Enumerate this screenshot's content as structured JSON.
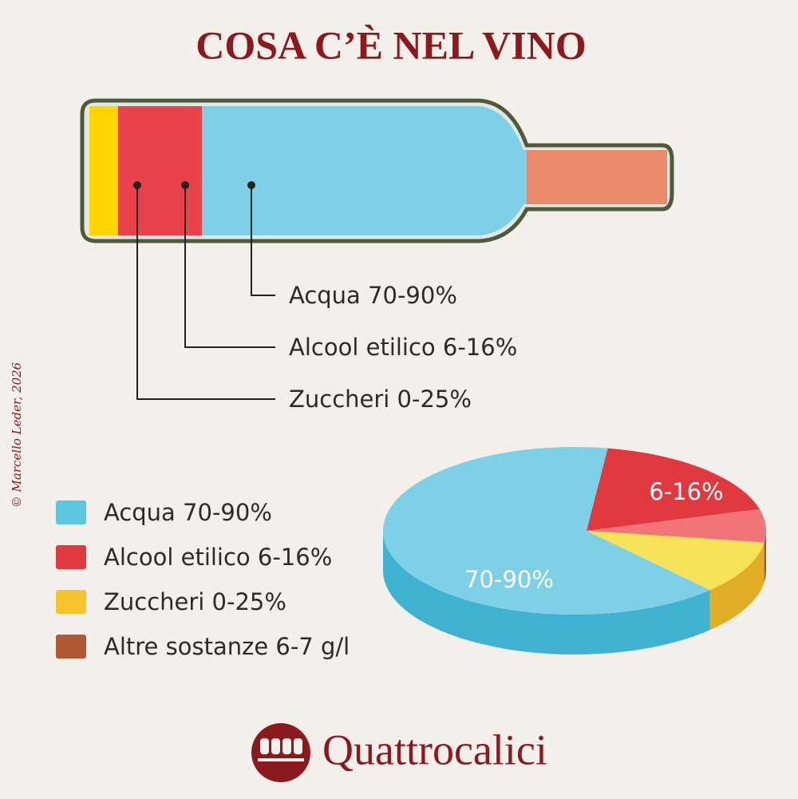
{
  "title": "COSA C’È NEL VINO",
  "bottle_labels": [
    "Acqua 70-90%",
    "Alcool etilico 6-16%",
    "Zuccheri 0-25%"
  ],
  "legend": [
    {
      "label": "Acqua 70-90%",
      "color": "#5bc6e0"
    },
    {
      "label": "Alcool etilico 6-16%",
      "color": "#e0393f"
    },
    {
      "label": "Zuccheri 0-25%",
      "color": "#f7c32e"
    },
    {
      "label": "Altre sostanze 6-7 g/l",
      "color": "#b05a35"
    }
  ],
  "pie_labels": [
    "6-16%",
    "70-90%"
  ],
  "credit": "© Marcello Leder, 2026",
  "brand": "Quattrocalici"
}
